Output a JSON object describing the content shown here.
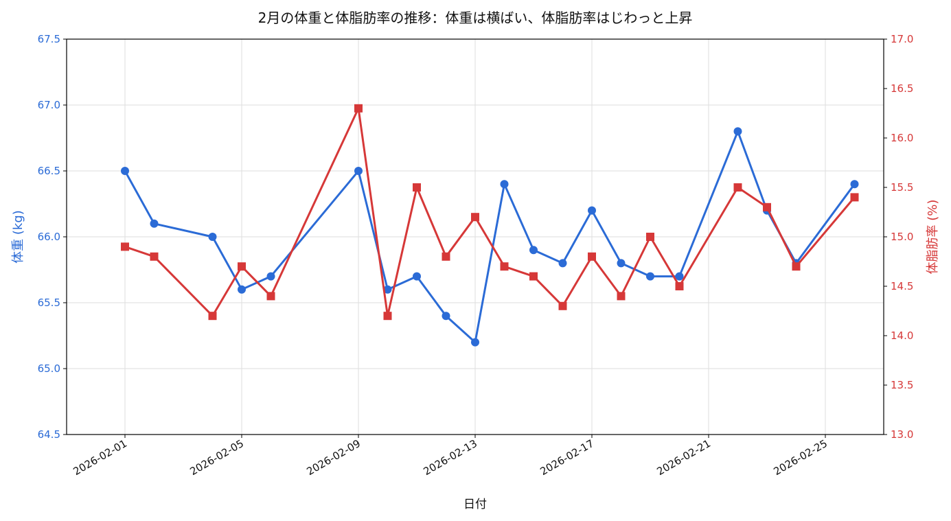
{
  "colors": {
    "weight": "#2b6bd6",
    "bodyfat": "#d63838",
    "grid": "#dddddd",
    "axis": "#000000",
    "text": "#111111"
  },
  "chart_data": {
    "type": "line",
    "title": "2月の体重と体脂肪率の推移：体重は横ばい、体脂肪率はじわっと上昇",
    "xlabel": "日付",
    "ylabel_left": "体重 (kg)",
    "ylabel_right": "体脂肪率 (%)",
    "x": [
      "2026-02-01",
      "2026-02-02",
      "2026-02-04",
      "2026-02-05",
      "2026-02-06",
      "2026-02-09",
      "2026-02-10",
      "2026-02-11",
      "2026-02-12",
      "2026-02-13",
      "2026-02-14",
      "2026-02-15",
      "2026-02-16",
      "2026-02-17",
      "2026-02-18",
      "2026-02-19",
      "2026-02-20",
      "2026-02-22",
      "2026-02-23",
      "2026-02-24",
      "2026-02-26"
    ],
    "series": [
      {
        "axis": "left",
        "marker": "circle",
        "values": [
          66.5,
          66.1,
          66.0,
          65.6,
          65.7,
          66.5,
          65.6,
          65.7,
          65.4,
          65.2,
          66.4,
          65.9,
          65.8,
          66.2,
          65.8,
          65.7,
          65.7,
          66.8,
          66.2,
          65.8,
          66.4
        ]
      },
      {
        "axis": "right",
        "marker": "square",
        "values": [
          14.9,
          14.8,
          14.2,
          14.7,
          14.4,
          16.3,
          14.2,
          15.5,
          14.8,
          15.2,
          14.7,
          14.6,
          14.3,
          14.8,
          14.4,
          15.0,
          14.5,
          15.5,
          15.3,
          14.7,
          15.4
        ]
      }
    ],
    "xlim": [
      "2026-01-30",
      "2026-02-27"
    ],
    "ylim_left": [
      64.5,
      67.5
    ],
    "ylim_right": [
      13.0,
      17.0
    ],
    "xticks": [
      "2026-02-01",
      "2026-02-05",
      "2026-02-09",
      "2026-02-13",
      "2026-02-17",
      "2026-02-21",
      "2026-02-25"
    ],
    "yticks_left": [
      "64.5",
      "65.0",
      "65.5",
      "66.0",
      "66.5",
      "67.0",
      "67.5"
    ],
    "yticks_right": [
      "13.0",
      "13.5",
      "14.0",
      "14.5",
      "15.0",
      "15.5",
      "16.0",
      "16.5",
      "17.0"
    ],
    "grid": true
  }
}
